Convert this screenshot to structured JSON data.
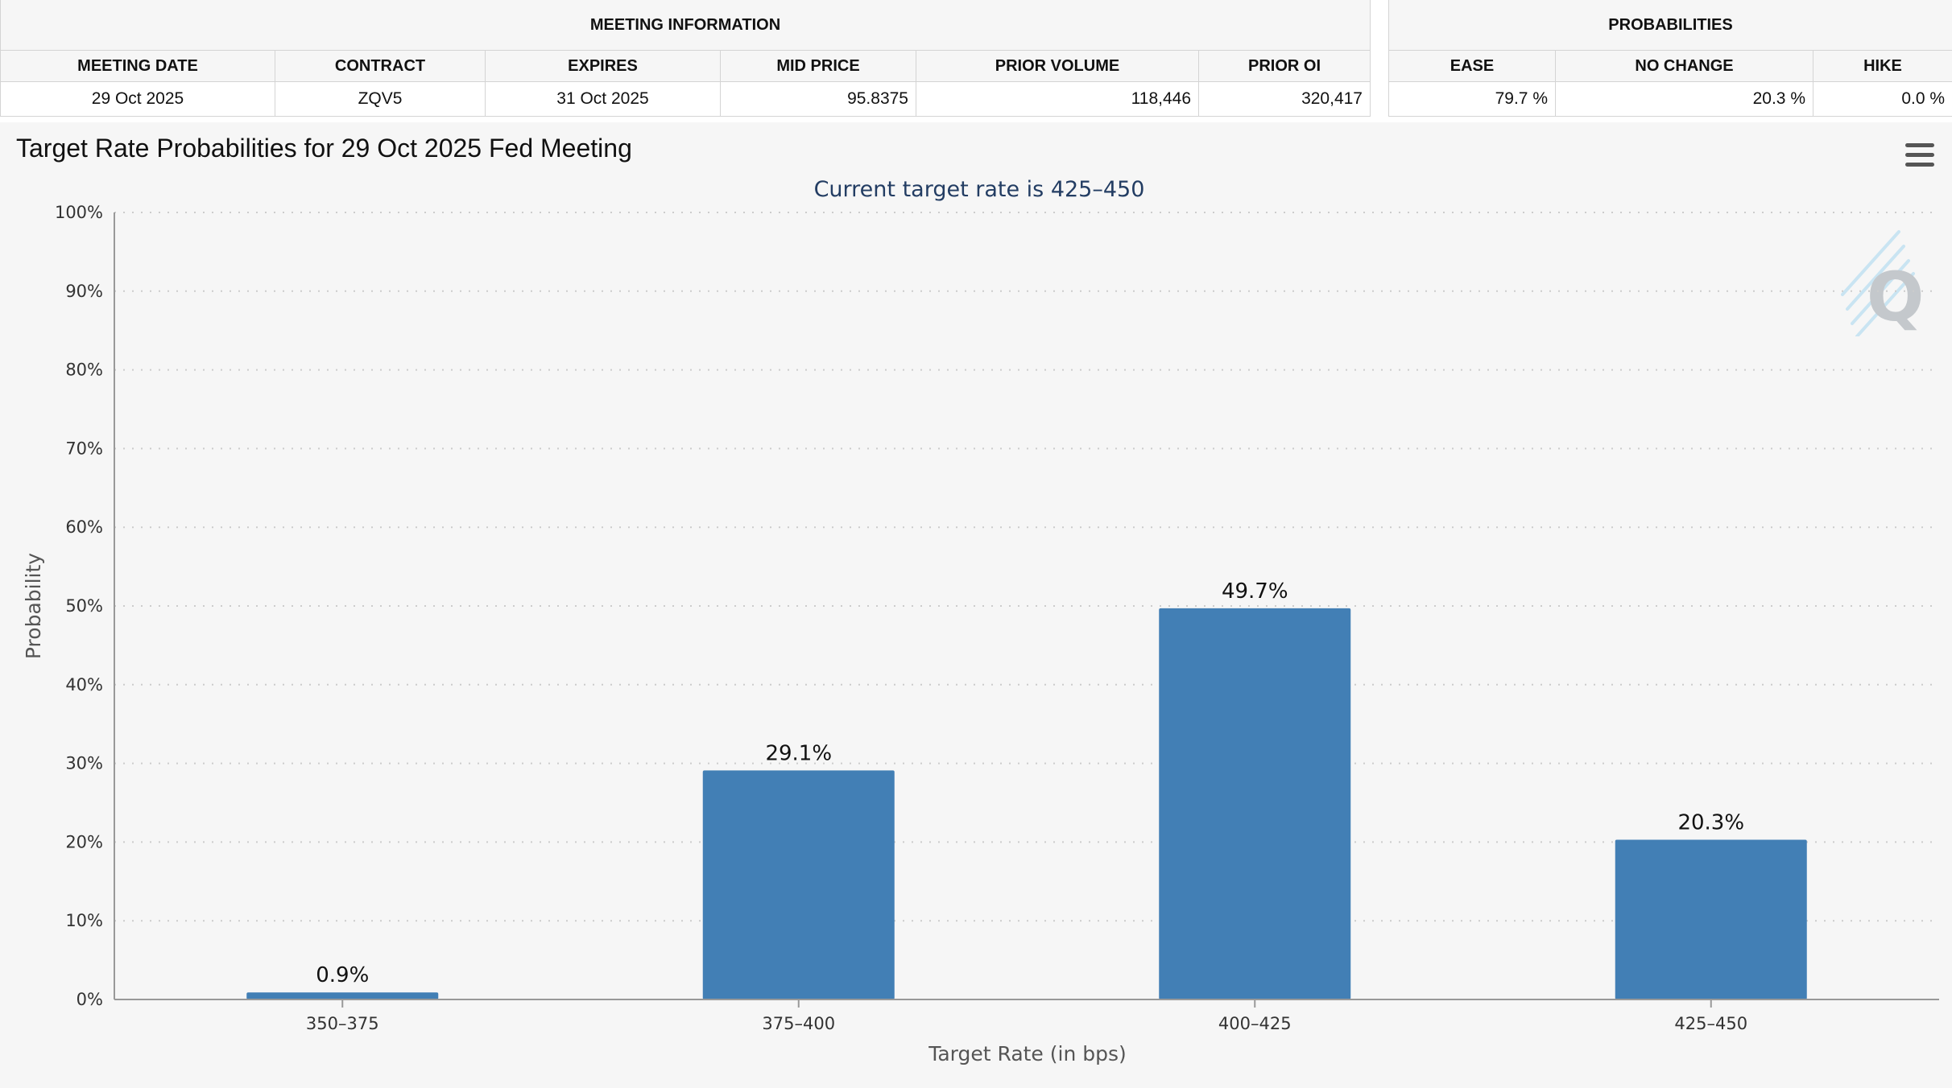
{
  "meeting_info": {
    "group_title": "MEETING INFORMATION",
    "headers": [
      "MEETING DATE",
      "CONTRACT",
      "EXPIRES",
      "MID PRICE",
      "PRIOR VOLUME",
      "PRIOR OI"
    ],
    "values": [
      "29 Oct 2025",
      "ZQV5",
      "31 Oct 2025",
      "95.8375",
      "118,446",
      "320,417"
    ]
  },
  "probabilities": {
    "group_title": "PROBABILITIES",
    "headers": [
      "EASE",
      "NO CHANGE",
      "HIKE"
    ],
    "values": [
      "79.7 %",
      "20.3 %",
      "0.0 %"
    ]
  },
  "colors": {
    "bar": "#427fb5",
    "axis": "#999999",
    "grid": "#cccccc"
  },
  "icons": {
    "menu": "hamburger-menu-icon",
    "watermark": "quikstrike-q-logo-icon"
  },
  "chart_data": {
    "type": "bar",
    "title": "Target Rate Probabilities for 29 Oct 2025 Fed Meeting",
    "subtitle": "Current target rate is 425–450",
    "xlabel": "Target Rate (in bps)",
    "ylabel": "Probability",
    "categories": [
      "350–375",
      "375–400",
      "400–425",
      "425–450"
    ],
    "values": [
      0.9,
      29.1,
      49.7,
      20.3
    ],
    "data_labels": [
      "0.9%",
      "29.1%",
      "49.7%",
      "20.3%"
    ],
    "ylim": [
      0,
      100
    ],
    "yticks": [
      0,
      10,
      20,
      30,
      40,
      50,
      60,
      70,
      80,
      90,
      100
    ],
    "ytick_labels": [
      "0%",
      "10%",
      "20%",
      "30%",
      "40%",
      "50%",
      "60%",
      "70%",
      "80%",
      "90%",
      "100%"
    ],
    "grid": true,
    "legend": "none"
  }
}
